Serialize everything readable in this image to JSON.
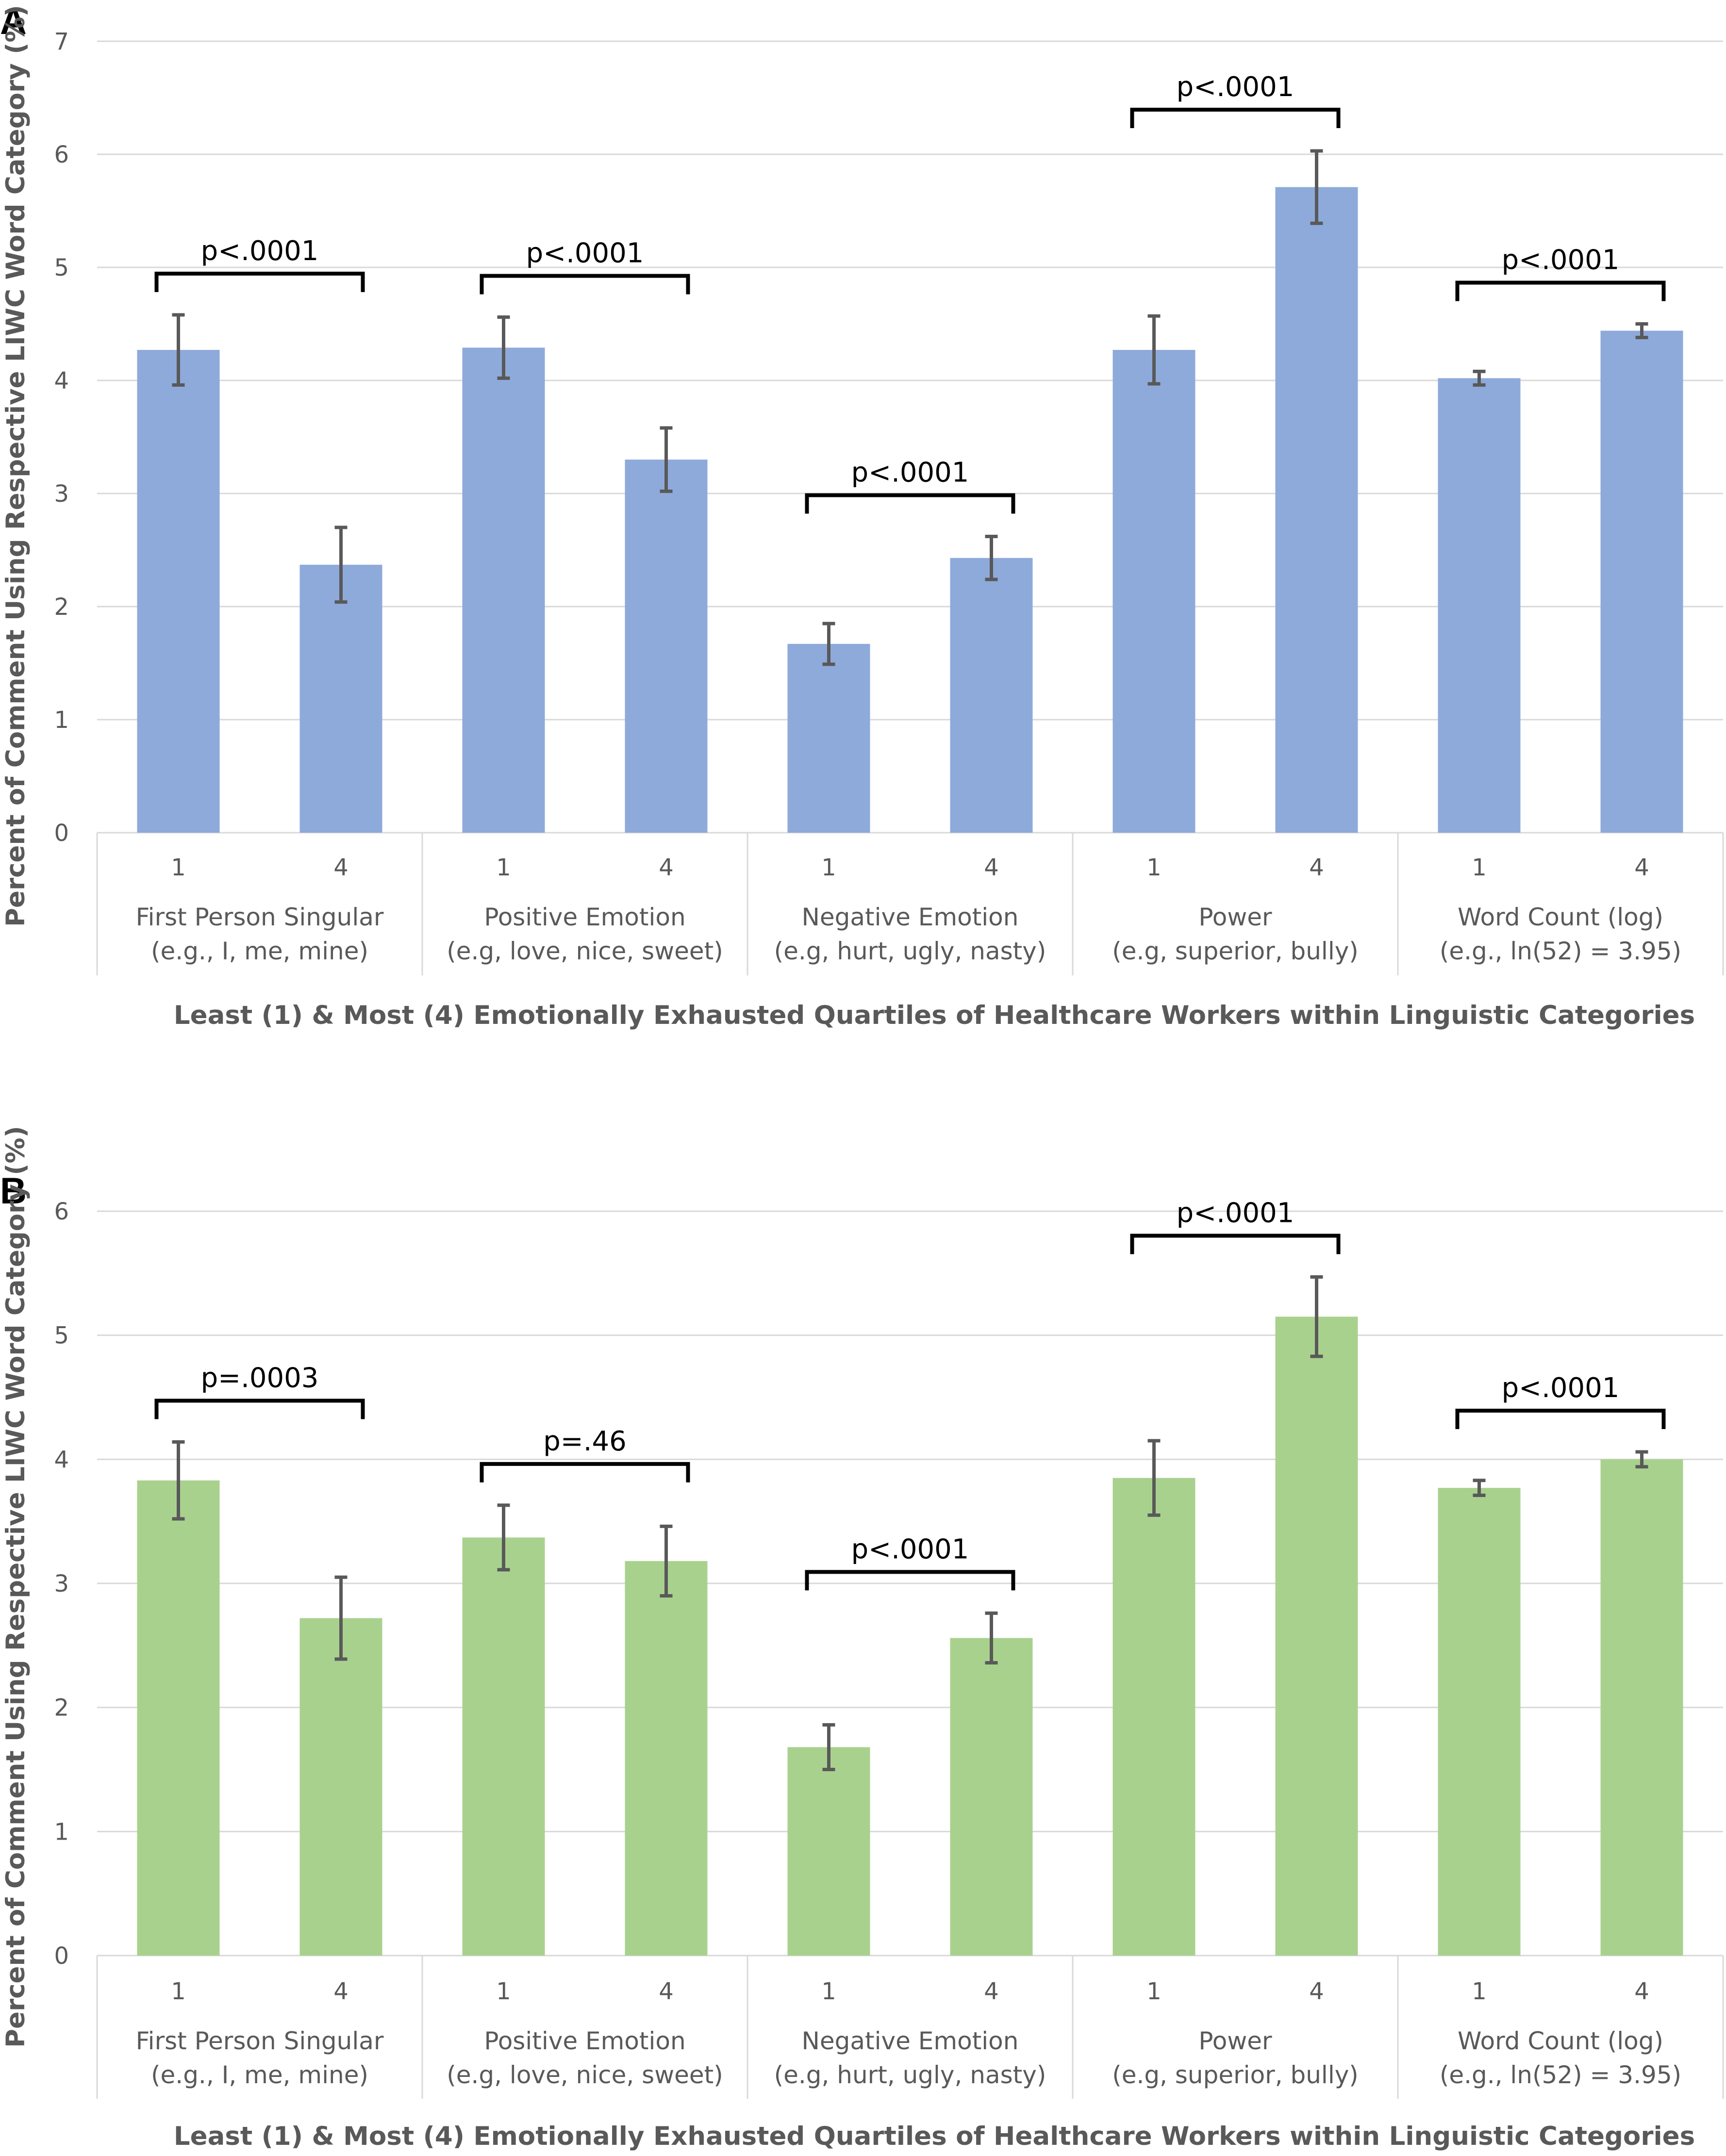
{
  "chart_data": [
    {
      "type": "bar",
      "panel_label": "A",
      "color": "#8eaadb",
      "ylim": [
        0,
        7
      ],
      "yticks": [
        "0",
        "1",
        "2",
        "3",
        "4",
        "5",
        "6",
        "7"
      ],
      "ylabel": "Percent of Comment Using Respective LIWC Word Category (%)",
      "xlabel": "Least (1) & Most (4) Emotionally Exhausted Quartiles of Healthcare Workers within Linguistic Categories",
      "groups": [
        {
          "name": "First Person Singular",
          "example": "(e.g., I, me, mine)",
          "p": "p<.0001",
          "bars": [
            {
              "label": "1",
              "value": 4.27,
              "err": 0.31
            },
            {
              "label": "4",
              "value": 2.37,
              "err": 0.33
            }
          ]
        },
        {
          "name": "Positive Emotion",
          "example": "(e.g, love, nice, sweet)",
          "p": "p<.0001",
          "bars": [
            {
              "label": "1",
              "value": 4.29,
              "err": 0.27
            },
            {
              "label": "4",
              "value": 3.3,
              "err": 0.28
            }
          ]
        },
        {
          "name": "Negative Emotion",
          "example": "(e.g, hurt, ugly, nasty)",
          "p": "p<.0001",
          "bars": [
            {
              "label": "1",
              "value": 1.67,
              "err": 0.18
            },
            {
              "label": "4",
              "value": 2.43,
              "err": 0.19
            }
          ]
        },
        {
          "name": "Power",
          "example": "(e.g, superior, bully)",
          "p": "p<.0001",
          "bars": [
            {
              "label": "1",
              "value": 4.27,
              "err": 0.3
            },
            {
              "label": "4",
              "value": 5.71,
              "err": 0.32
            }
          ]
        },
        {
          "name": "Word Count (log)",
          "example": "(e.g., ln(52) = 3.95)",
          "p": "p<.0001",
          "bars": [
            {
              "label": "1",
              "value": 4.02,
              "err": 0.06
            },
            {
              "label": "4",
              "value": 4.44,
              "err": 0.06
            }
          ]
        }
      ]
    },
    {
      "type": "bar",
      "panel_label": "B",
      "color": "#a9d18e",
      "ylim": [
        0,
        6
      ],
      "yticks": [
        "0",
        "1",
        "2",
        "3",
        "4",
        "5",
        "6"
      ],
      "ylabel": "Percent of Comment Using Respective LIWC Word Category (%)",
      "xlabel": "Least (1) & Most (4) Emotionally Exhausted Quartiles of Healthcare Workers within Linguistic Categories",
      "groups": [
        {
          "name": "First Person Singular",
          "example": "(e.g., I, me, mine)",
          "p": "p=.0003",
          "bars": [
            {
              "label": "1",
              "value": 3.83,
              "err": 0.31
            },
            {
              "label": "4",
              "value": 2.72,
              "err": 0.33
            }
          ]
        },
        {
          "name": "Positive Emotion",
          "example": "(e.g, love, nice, sweet)",
          "p": "p=.46",
          "bars": [
            {
              "label": "1",
              "value": 3.37,
              "err": 0.26
            },
            {
              "label": "4",
              "value": 3.18,
              "err": 0.28
            }
          ]
        },
        {
          "name": "Negative Emotion",
          "example": "(e.g, hurt, ugly, nasty)",
          "p": "p<.0001",
          "bars": [
            {
              "label": "1",
              "value": 1.68,
              "err": 0.18
            },
            {
              "label": "4",
              "value": 2.56,
              "err": 0.2
            }
          ]
        },
        {
          "name": "Power",
          "example": "(e.g, superior, bully)",
          "p": "p<.0001",
          "bars": [
            {
              "label": "1",
              "value": 3.85,
              "err": 0.3
            },
            {
              "label": "4",
              "value": 5.15,
              "err": 0.32
            }
          ]
        },
        {
          "name": "Word Count (log)",
          "example": "(e.g., ln(52) = 3.95)",
          "p": "p<.0001",
          "bars": [
            {
              "label": "1",
              "value": 3.77,
              "err": 0.06
            },
            {
              "label": "4",
              "value": 4.0,
              "err": 0.06
            }
          ]
        }
      ]
    }
  ]
}
